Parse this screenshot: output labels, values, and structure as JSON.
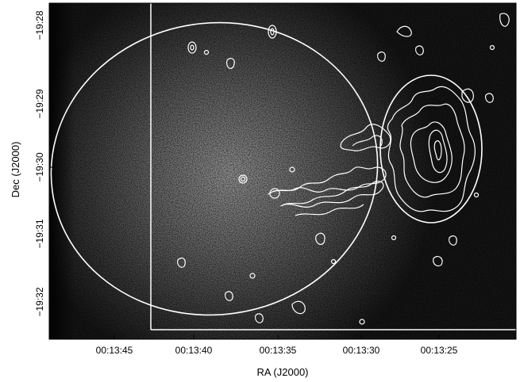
{
  "image": {
    "xlabel": "RA (J2000)",
    "ylabel": "Dec (J2000)",
    "ra_ticks": [
      "00:13:45",
      "00:13:40",
      "00:13:35",
      "00:13:30",
      "00:13:25"
    ],
    "dec_ticks": [
      "−19:28",
      "−19:29",
      "−19:30",
      "−19:31",
      "−19:32"
    ],
    "colors": {
      "background_dark": "#0a0a0a",
      "emission_peak": "#bdbdbd",
      "overlay": "#ffffff",
      "label": "#000000"
    }
  }
}
